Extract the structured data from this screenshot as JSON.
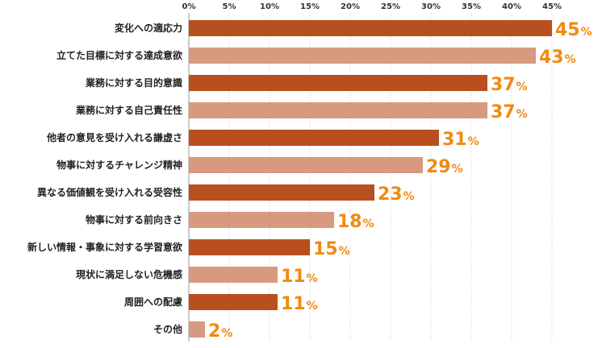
{
  "chart_data": {
    "type": "bar",
    "orientation": "horizontal",
    "categories": [
      "変化への適応力",
      "立てた目標に対する達成意欲",
      "業務に対する目的意識",
      "業務に対する自己責任性",
      "他者の意見を受け入れる謙虚さ",
      "物事に対するチャレンジ精神",
      "異なる価値観を受け入れる受容性",
      "物事に対する前向きさ",
      "新しい情報・事象に対する学習意欲",
      "現状に満足しない危機感",
      "周囲への配慮",
      "その他"
    ],
    "values": [
      45,
      43,
      37,
      37,
      31,
      29,
      23,
      18,
      15,
      11,
      11,
      2
    ],
    "value_suffix": "%",
    "x_ticks": [
      "0%",
      "5%",
      "10%",
      "15%",
      "20%",
      "25%",
      "30%",
      "35%",
      "40%",
      "45%"
    ],
    "xlim": [
      0,
      45
    ],
    "grid": true,
    "colors": {
      "dark": "#b84f1e",
      "light": "#d89a7e",
      "label": "#f08a12"
    }
  }
}
